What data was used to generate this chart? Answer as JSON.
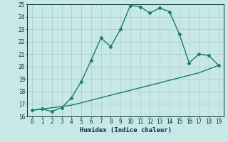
{
  "xlabel": "Humidex (Indice chaleur)",
  "bg_color": "#c8e8e8",
  "grid_color": "#aacfcf",
  "line_color": "#1a7a6a",
  "x_curve": [
    0,
    1,
    2,
    3,
    4,
    5,
    6,
    7,
    8,
    9,
    10,
    11,
    12,
    13,
    14,
    15,
    16,
    17,
    18,
    19
  ],
  "y_curve": [
    16.5,
    16.6,
    16.4,
    16.7,
    17.5,
    18.8,
    20.5,
    22.3,
    21.6,
    23.0,
    24.9,
    24.8,
    24.3,
    24.7,
    24.4,
    22.6,
    20.3,
    21.0,
    20.9,
    20.1
  ],
  "x_line": [
    0,
    1,
    2,
    3,
    4,
    5,
    6,
    7,
    8,
    9,
    10,
    11,
    12,
    13,
    14,
    15,
    16,
    17,
    18,
    19
  ],
  "y_line": [
    16.5,
    16.6,
    16.7,
    16.8,
    16.9,
    17.1,
    17.3,
    17.5,
    17.7,
    17.9,
    18.1,
    18.3,
    18.5,
    18.7,
    18.9,
    19.1,
    19.3,
    19.5,
    19.8,
    20.1
  ],
  "xlim": [
    -0.5,
    19.5
  ],
  "ylim": [
    16,
    25
  ],
  "yticks": [
    16,
    17,
    18,
    19,
    20,
    21,
    22,
    23,
    24,
    25
  ],
  "xticks": [
    0,
    1,
    2,
    3,
    4,
    5,
    6,
    7,
    8,
    9,
    10,
    11,
    12,
    13,
    14,
    15,
    16,
    17,
    18,
    19
  ],
  "markersize": 2.5,
  "linewidth": 1.0,
  "label_fontsize": 6.5,
  "tick_fontsize": 5.5
}
